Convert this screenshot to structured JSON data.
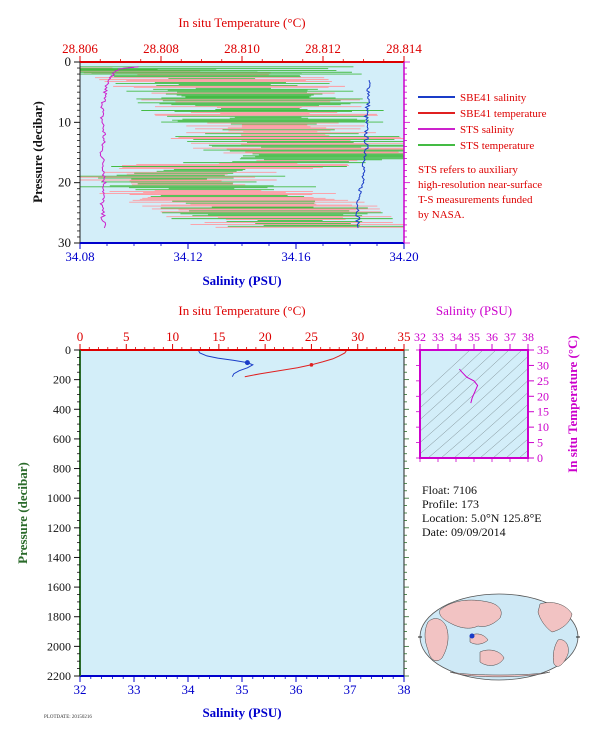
{
  "colors": {
    "red": "#dd0000",
    "blue": "#0000cc",
    "magenta": "#cc00cc",
    "green": "#2a6a2a",
    "plot_bg": "#d3eef9",
    "sbe_salinity": "#1a3cc8",
    "sbe_temperature": "#e02020",
    "sts_salinity": "#cc22cc",
    "sts_temperature": "#44bb44",
    "sts_temp_pink": "#ff9aa0"
  },
  "top_panel": {
    "title": "In situ Temperature (°C)",
    "xlabel": "Salinity (PSU)",
    "ylabel": "Pressure (decibar)",
    "legend": [
      {
        "label": "SBE41 salinity",
        "color": "#1a3cc8"
      },
      {
        "label": "SBE41 temperature",
        "color": "#e02020"
      },
      {
        "label": "STS salinity",
        "color": "#cc22cc"
      },
      {
        "label": "STS temperature",
        "color": "#44bb44"
      }
    ],
    "note_lines": [
      "STS refers to auxiliary",
      "high-resolution near-surface",
      "T-S measurements funded",
      "by NASA."
    ]
  },
  "bottom_panel": {
    "title": "In situ Temperature (°C)",
    "xlabel": "Salinity (PSU)",
    "ylabel": "Pressure (decibar)"
  },
  "ts_panel": {
    "title": "Salinity (PSU)",
    "ylabel": "In situ Temperature (°C)"
  },
  "float_info": {
    "float": "Float:  7106",
    "profile": "Profile:  173",
    "location": "Location:  5.0°N  125.8°E",
    "date": "Date:  09/09/2014"
  },
  "footer": "PLOTDATE: 20150216",
  "chart_data": [
    {
      "type": "line",
      "title": "In situ Temperature (°C)",
      "xlabel": "Salinity (PSU)",
      "ylabel": "Pressure (decibar)",
      "salinity_ticks": [
        "34.08",
        "34.12",
        "34.16",
        "34.20"
      ],
      "salinity_range": [
        34.08,
        34.2
      ],
      "temperature_ticks": [
        "28.806",
        "28.808",
        "28.810",
        "28.812",
        "28.814"
      ],
      "temperature_range": [
        28.806,
        28.814
      ],
      "pressure_ticks": [
        "0",
        "10",
        "20",
        "30"
      ],
      "pressure_range": [
        0,
        30
      ],
      "series": [
        {
          "name": "SBE41 salinity",
          "axis": "salinity",
          "points": [
            [
              34.187,
              3
            ],
            [
              34.187,
              6
            ],
            [
              34.186,
              9
            ],
            [
              34.186,
              12
            ],
            [
              34.186,
              15
            ],
            [
              34.185,
              18
            ],
            [
              34.184,
              21
            ],
            [
              34.183,
              24
            ],
            [
              34.183,
              27.5
            ]
          ]
        },
        {
          "name": "STS salinity",
          "axis": "salinity",
          "points": [
            [
              34.101,
              0.8
            ],
            [
              34.094,
              1.2
            ],
            [
              34.09,
              3
            ],
            [
              34.089,
              6
            ],
            [
              34.088,
              9
            ],
            [
              34.089,
              12
            ],
            [
              34.088,
              15
            ],
            [
              34.089,
              18
            ],
            [
              34.089,
              21
            ],
            [
              34.088,
              24
            ],
            [
              34.089,
              27.5
            ]
          ]
        },
        {
          "name": "STS temperature",
          "axis": "temperature",
          "points": [
            [
              28.806,
              1
            ],
            [
              28.809,
              2
            ],
            [
              28.81,
              5
            ],
            [
              28.8105,
              8
            ],
            [
              28.811,
              12
            ],
            [
              28.812,
              15
            ],
            [
              28.8125,
              16
            ],
            [
              28.81,
              17
            ],
            [
              28.808,
              19
            ],
            [
              28.809,
              21
            ],
            [
              28.8105,
              24
            ],
            [
              28.811,
              26
            ],
            [
              28.812,
              27.5
            ]
          ]
        }
      ]
    },
    {
      "type": "line",
      "title": "In situ Temperature (°C)",
      "xlabel": "Salinity (PSU)",
      "ylabel": "Pressure (decibar)",
      "salinity_ticks": [
        "32",
        "33",
        "34",
        "35",
        "36",
        "37",
        "38"
      ],
      "salinity_range": [
        32,
        38
      ],
      "temperature_ticks": [
        "0",
        "5",
        "10",
        "15",
        "20",
        "25",
        "30",
        "35"
      ],
      "temperature_range": [
        0,
        35
      ],
      "pressure_ticks": [
        "0",
        "200",
        "400",
        "600",
        "800",
        "1000",
        "1200",
        "1400",
        "1600",
        "1800",
        "2000",
        "2200"
      ],
      "pressure_range": [
        0,
        2200
      ],
      "series": [
        {
          "name": "SBE41 salinity",
          "axis": "salinity",
          "points": [
            [
              34.19,
              2
            ],
            [
              34.22,
              20
            ],
            [
              34.35,
              40
            ],
            [
              34.55,
              55
            ],
            [
              34.85,
              70
            ],
            [
              35.1,
              85
            ],
            [
              35.2,
              100
            ],
            [
              35.1,
              120
            ],
            [
              34.95,
              140
            ],
            [
              34.85,
              160
            ],
            [
              34.82,
              180
            ]
          ]
        },
        {
          "name": "SBE41 temperature",
          "axis": "temperature",
          "points": [
            [
              28.8,
              2
            ],
            [
              28.6,
              20
            ],
            [
              28.0,
              40
            ],
            [
              27.3,
              60
            ],
            [
              26.2,
              80
            ],
            [
              25.0,
              100
            ],
            [
              23.5,
              120
            ],
            [
              21.5,
              140
            ],
            [
              19.5,
              160
            ],
            [
              17.8,
              180
            ]
          ]
        }
      ]
    },
    {
      "type": "line",
      "title": "Salinity (PSU)",
      "ylabel": "In situ Temperature (°C)",
      "x_ticks": [
        "32",
        "33",
        "34",
        "35",
        "36",
        "37",
        "38"
      ],
      "x_range": [
        32,
        38
      ],
      "y_ticks": [
        "0",
        "5",
        "10",
        "15",
        "20",
        "25",
        "30",
        "35"
      ],
      "y_range": [
        0,
        35
      ],
      "series": [
        {
          "name": "",
          "points": [
            [
              34.19,
              28.8
            ],
            [
              34.3,
              28.0
            ],
            [
              34.6,
              26.2
            ],
            [
              35.0,
              25.0
            ],
            [
              35.2,
              23.5
            ],
            [
              35.05,
              21.5
            ],
            [
              34.9,
              19.5
            ],
            [
              34.82,
              17.8
            ]
          ]
        }
      ]
    }
  ]
}
